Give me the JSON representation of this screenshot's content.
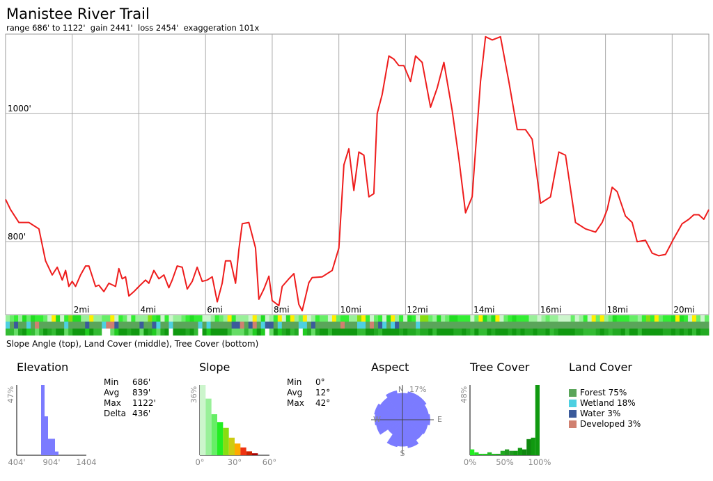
{
  "header": {
    "title": "Manistee River Trail",
    "subtitle": "range 686' to 1122'  gain 2441'  loss 2454'  exaggeration 101x"
  },
  "strip_caption": "Slope Angle (top), Land Cover (middle), Tree Cover (bottom)",
  "colors": {
    "profile": "#ee1c1c",
    "grid": "#aaaaaa",
    "histogram_blue": "#7b7bff",
    "forest": "#5aa55a",
    "wetland": "#4dd0e1",
    "water": "#3b5b9b",
    "developed": "#d08070"
  },
  "chart_data": [
    {
      "type": "line",
      "name": "elevation-profile",
      "xunit": "mi",
      "xlim": [
        0,
        21.1
      ],
      "ylim": [
        686,
        1122
      ],
      "grid": true,
      "ytick_labels": [
        {
          "value": 1000,
          "label": "1000'"
        },
        {
          "value": 800,
          "label": "800'"
        }
      ],
      "xtick_labels": [
        {
          "value": 2,
          "label": "2mi"
        },
        {
          "value": 4,
          "label": "4mi"
        },
        {
          "value": 6,
          "label": "6mi"
        },
        {
          "value": 8,
          "label": "8mi"
        },
        {
          "value": 10,
          "label": "10mi"
        },
        {
          "value": 12,
          "label": "12mi"
        },
        {
          "value": 14,
          "label": "14mi"
        },
        {
          "value": 16,
          "label": "16mi"
        },
        {
          "value": 18,
          "label": "18mi"
        },
        {
          "value": 20,
          "label": "20mi"
        }
      ],
      "x": [
        0,
        0.15,
        0.4,
        0.7,
        1.0,
        1.2,
        1.4,
        1.55,
        1.7,
        1.8,
        1.9,
        2.0,
        2.1,
        2.25,
        2.4,
        2.5,
        2.7,
        2.8,
        2.95,
        3.1,
        3.3,
        3.4,
        3.5,
        3.6,
        3.7,
        3.85,
        4.0,
        4.2,
        4.3,
        4.45,
        4.6,
        4.75,
        4.9,
        5.0,
        5.15,
        5.3,
        5.45,
        5.6,
        5.75,
        5.9,
        6.05,
        6.2,
        6.35,
        6.5,
        6.6,
        6.75,
        6.9,
        7.0,
        7.1,
        7.3,
        7.5,
        7.6,
        7.75,
        7.9,
        8.0,
        8.2,
        8.3,
        8.5,
        8.65,
        8.8,
        8.9,
        9.1,
        9.2,
        9.5,
        9.8,
        10.0,
        10.15,
        10.3,
        10.45,
        10.6,
        10.75,
        10.9,
        11.05,
        11.15,
        11.3,
        11.5,
        11.65,
        11.8,
        11.95,
        12.15,
        12.3,
        12.5,
        12.75,
        12.95,
        13.15,
        13.4,
        13.6,
        13.8,
        14.0,
        14.25,
        14.4,
        14.6,
        14.85,
        15.1,
        15.35,
        15.6,
        15.8,
        16.05,
        16.35,
        16.6,
        16.8,
        17.1,
        17.4,
        17.7,
        17.9,
        18.05,
        18.2,
        18.35,
        18.6,
        18.8,
        18.95,
        19.2,
        19.4,
        19.6,
        19.8,
        20.05,
        20.3,
        20.5,
        20.65,
        20.8,
        20.95,
        21.1
      ],
      "y": [
        866,
        850,
        830,
        830,
        820,
        770,
        748,
        760,
        740,
        755,
        730,
        738,
        730,
        748,
        762,
        762,
        730,
        732,
        722,
        735,
        730,
        758,
        742,
        745,
        715,
        722,
        730,
        740,
        735,
        755,
        742,
        748,
        728,
        740,
        762,
        760,
        726,
        738,
        760,
        738,
        740,
        745,
        706,
        735,
        770,
        770,
        735,
        788,
        828,
        830,
        790,
        710,
        726,
        746,
        708,
        700,
        730,
        742,
        750,
        702,
        692,
        736,
        744,
        745,
        755,
        790,
        920,
        945,
        880,
        940,
        935,
        870,
        875,
        1000,
        1030,
        1090,
        1085,
        1075,
        1075,
        1050,
        1090,
        1080,
        1010,
        1040,
        1080,
        1005,
        930,
        845,
        870,
        1050,
        1120,
        1115,
        1120,
        1050,
        975,
        975,
        960,
        860,
        870,
        940,
        935,
        830,
        820,
        815,
        830,
        850,
        885,
        878,
        840,
        830,
        800,
        802,
        782,
        778,
        780,
        805,
        828,
        835,
        842,
        842,
        835,
        850
      ]
    },
    {
      "type": "bar",
      "name": "Elevation",
      "xtick_labels": [
        "404'",
        "904'",
        "1404"
      ],
      "ymax_label": "47%",
      "values": [
        0,
        0,
        0,
        0,
        0,
        0,
        0,
        0.47,
        0.26,
        0.11,
        0.11,
        0.025,
        0,
        0,
        0,
        0,
        0,
        0,
        0,
        0
      ]
    },
    {
      "type": "bar",
      "name": "Slope",
      "xtick_labels": [
        "0°",
        "30°",
        "60°"
      ],
      "ymax_label": "36%",
      "values": [
        0.36,
        0.29,
        0.21,
        0.17,
        0.14,
        0.09,
        0.06,
        0.04,
        0.02,
        0.01,
        0,
        0
      ],
      "colors": [
        "#ccf5cc",
        "#99f099",
        "#66ee66",
        "#22ee22",
        "#88dd11",
        "#cccc11",
        "#ffaa00",
        "#ee3311",
        "#cc2200",
        "#aa0000",
        "#880000",
        "#660000"
      ]
    },
    {
      "type": "polar",
      "name": "Aspect",
      "max_label": "17%",
      "directions": [
        "N",
        "E",
        "S",
        "W"
      ],
      "values": [
        0.13,
        0.14,
        0.14,
        0.13,
        0.135,
        0.125,
        0.12,
        0.14,
        0.13,
        0.135,
        0.085,
        0.13,
        0.135,
        0.14,
        0.13,
        0.145
      ]
    },
    {
      "type": "bar",
      "name": "Tree Cover",
      "xtick_labels": [
        "0%",
        "50%",
        "100%"
      ],
      "ymax_label": "48%",
      "values": [
        0.04,
        0.02,
        0.01,
        0.01,
        0.02,
        0.01,
        0.01,
        0.03,
        0.04,
        0.03,
        0.03,
        0.05,
        0.04,
        0.11,
        0.12,
        0.48
      ],
      "colors": [
        "#22ee22",
        "#22dd22",
        "#22cc22",
        "#22cc22",
        "#22bb22",
        "#22bb22",
        "#22aa22",
        "#22aa22",
        "#229922",
        "#229922",
        "#119911",
        "#119911",
        "#108810",
        "#108810",
        "#109910",
        "#109910"
      ]
    }
  ],
  "panels": {
    "elevation": {
      "title": "Elevation",
      "stats": [
        [
          "Min",
          "686'"
        ],
        [
          "Avg",
          "839'"
        ],
        [
          "Max",
          "1122'"
        ],
        [
          "Delta",
          "436'"
        ]
      ]
    },
    "slope": {
      "title": "Slope",
      "stats": [
        [
          "Min",
          "0°"
        ],
        [
          "Avg",
          "12°"
        ],
        [
          "Max",
          "42°"
        ]
      ]
    },
    "aspect": {
      "title": "Aspect"
    },
    "tree_cover": {
      "title": "Tree Cover"
    },
    "land_cover": {
      "title": "Land Cover",
      "legend": [
        {
          "label": "Forest 75%",
          "color": "#5aa55a"
        },
        {
          "label": "Wetland 18%",
          "color": "#4dd0e1"
        },
        {
          "label": "Water 3%",
          "color": "#3b5b9b"
        },
        {
          "label": "Developed 3%",
          "color": "#d08070"
        }
      ]
    }
  }
}
